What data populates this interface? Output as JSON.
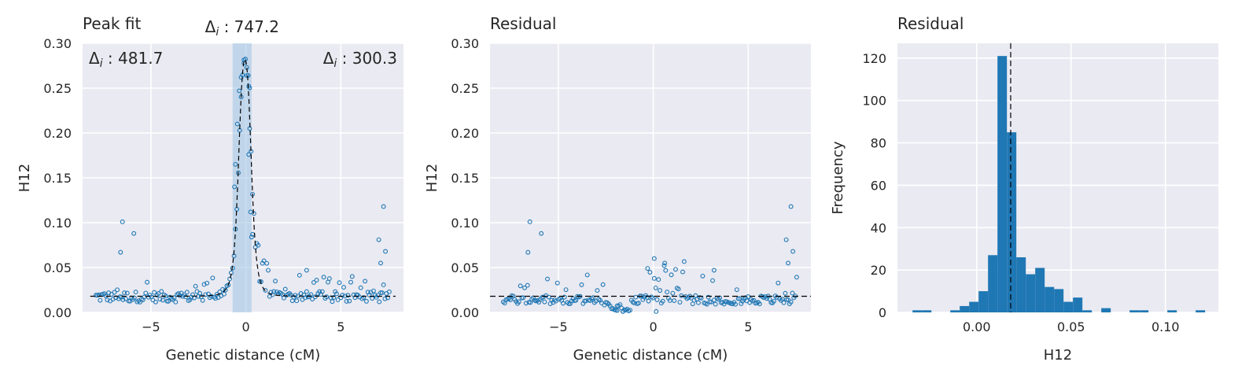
{
  "chart_data": [
    {
      "type": "scatter",
      "title": "Peak fit",
      "xlabel": "Genetic distance (cM)",
      "ylabel": "H12",
      "xlim": [
        -8.6,
        8.3
      ],
      "ylim": [
        0,
        0.3
      ],
      "xticks": [
        -5,
        0,
        5
      ],
      "xtick_labels": [
        "−5",
        "0",
        "5"
      ],
      "yticks": [
        0,
        0.05,
        0.1,
        0.15,
        0.2,
        0.25,
        0.3
      ],
      "ytick_labels": [
        "0.00",
        "0.05",
        "0.10",
        "0.15",
        "0.20",
        "0.25",
        "0.30"
      ],
      "grid": true,
      "annotations": [
        {
          "text": "Δ_i : 481.7",
          "position": "top-left"
        },
        {
          "text": "Δ_i : 747.2",
          "position": "above-peak"
        },
        {
          "text": "Δ_i : 300.3",
          "position": "top-right"
        }
      ],
      "shaded_region_x": [
        -0.7,
        0.3
      ],
      "fit_curve": {
        "style": "dashed",
        "color": "#000000",
        "baseline": 0.018,
        "peak_x": -0.05,
        "peak_y": 0.282
      },
      "marker_color": "#1f77b4"
    },
    {
      "type": "scatter",
      "title": "Residual",
      "xlabel": "Genetic distance (cM)",
      "ylabel": "H12",
      "xlim": [
        -8.6,
        8.3
      ],
      "ylim": [
        0,
        0.3
      ],
      "xticks": [
        -5,
        0,
        5
      ],
      "xtick_labels": [
        "−5",
        "0",
        "5"
      ],
      "yticks": [
        0,
        0.05,
        0.1,
        0.15,
        0.2,
        0.25,
        0.3
      ],
      "ytick_labels": [
        "0.00",
        "0.05",
        "0.10",
        "0.15",
        "0.20",
        "0.25",
        "0.30"
      ],
      "grid": true,
      "hline": {
        "y": 0.018,
        "style": "dashed",
        "color": "#000000"
      },
      "marker_color": "#1f77b4"
    },
    {
      "type": "bar",
      "title": "Residual",
      "xlabel": "H12",
      "ylabel": "Frequency",
      "xlim": [
        -0.042,
        0.128
      ],
      "ylim": [
        0,
        127
      ],
      "xticks": [
        0.0,
        0.05,
        0.1
      ],
      "xtick_labels": [
        "0.00",
        "0.05",
        "0.10"
      ],
      "yticks": [
        0,
        20,
        40,
        60,
        80,
        100,
        120
      ],
      "ytick_labels": [
        "0",
        "20",
        "40",
        "60",
        "80",
        "100",
        "120"
      ],
      "grid": true,
      "bin_width": 0.005,
      "bins": [
        {
          "x0": -0.034,
          "count": 1
        },
        {
          "x0": -0.029,
          "count": 1
        },
        {
          "x0": -0.014,
          "count": 1
        },
        {
          "x0": -0.009,
          "count": 3
        },
        {
          "x0": -0.004,
          "count": 5
        },
        {
          "x0": 0.001,
          "count": 10
        },
        {
          "x0": 0.006,
          "count": 27
        },
        {
          "x0": 0.011,
          "count": 121
        },
        {
          "x0": 0.016,
          "count": 85
        },
        {
          "x0": 0.021,
          "count": 26
        },
        {
          "x0": 0.026,
          "count": 18
        },
        {
          "x0": 0.031,
          "count": 21
        },
        {
          "x0": 0.036,
          "count": 12
        },
        {
          "x0": 0.041,
          "count": 11
        },
        {
          "x0": 0.046,
          "count": 5
        },
        {
          "x0": 0.051,
          "count": 7
        },
        {
          "x0": 0.056,
          "count": 1
        },
        {
          "x0": 0.066,
          "count": 2
        },
        {
          "x0": 0.081,
          "count": 1
        },
        {
          "x0": 0.086,
          "count": 1
        },
        {
          "x0": 0.101,
          "count": 1
        },
        {
          "x0": 0.116,
          "count": 1
        }
      ],
      "vline": {
        "x": 0.018,
        "style": "dashed",
        "color": "#000000"
      },
      "bar_color": "#1f77b4"
    }
  ]
}
